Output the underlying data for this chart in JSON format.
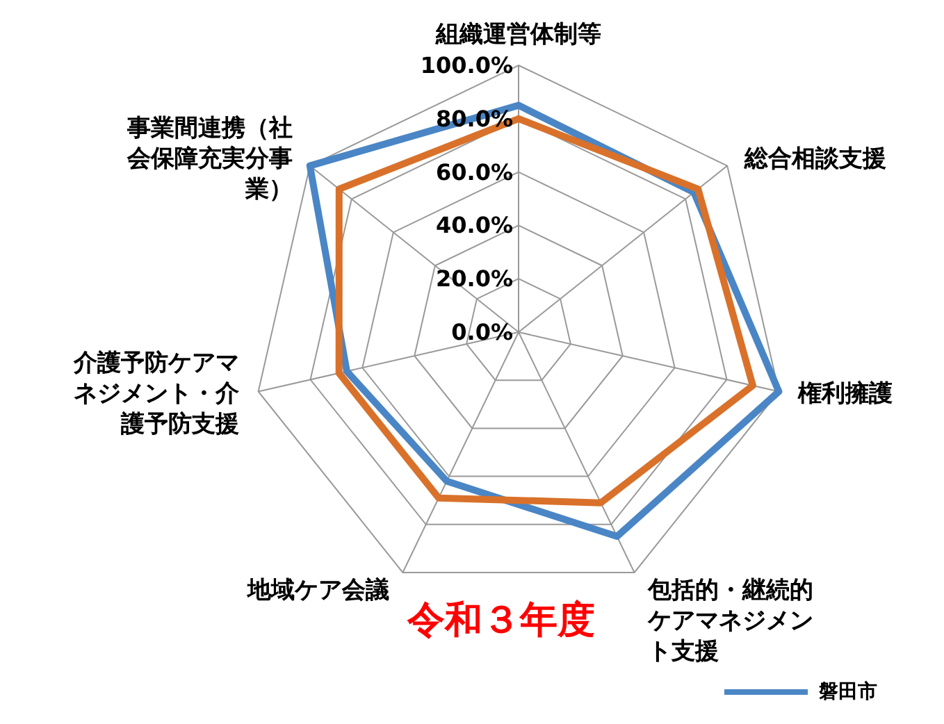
{
  "chart_data": {
    "type": "radar",
    "title": "令和３年度",
    "categories": [
      "組織運営体制等",
      "総合相談支援",
      "権利擁護",
      "包括的・継続的ケアマネジメント支援",
      "地域ケア会議",
      "介護予防ケアマネジメント・介護予防支援",
      "事業間連携（社会保障充実分事業）"
    ],
    "series": [
      {
        "name": "磐田市",
        "color": "#4a86c5",
        "values": [
          85,
          84,
          100,
          85,
          62,
          66,
          100
        ]
      },
      {
        "color": "#d9712a",
        "values": [
          80,
          86,
          90,
          71,
          69,
          69,
          86
        ]
      }
    ],
    "ylim": [
      0,
      100
    ],
    "yticks": [
      {
        "value": 0,
        "label": "0.0%"
      },
      {
        "value": 20,
        "label": "20.0%"
      },
      {
        "value": 40,
        "label": "40.0%"
      },
      {
        "value": 60,
        "label": "60.0%"
      },
      {
        "value": 80,
        "label": "80.0%"
      },
      {
        "value": 100,
        "label": "100.0%"
      }
    ],
    "grid": true,
    "legend": "bottom right",
    "marker": "none",
    "line_style": "solid"
  }
}
